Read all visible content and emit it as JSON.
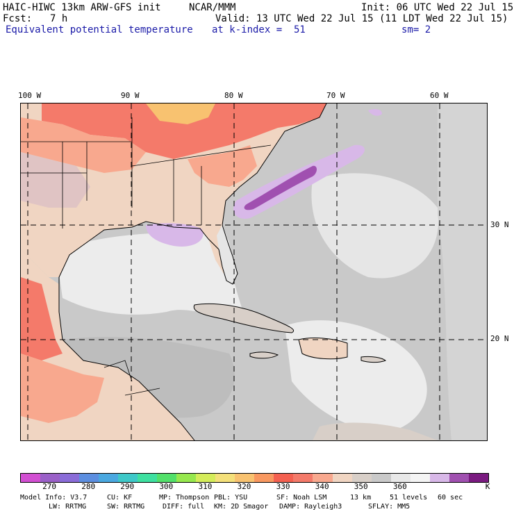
{
  "header": {
    "model_title": "HAIC-HIWC 13km ARW-GFS init",
    "center": "NCAR/MMM",
    "init_time": "Init: 06 UTC Wed 22 Jul 15",
    "fcst_label": "Fcst:",
    "fcst_value": "7 h",
    "valid_time": "Valid: 13 UTC Wed 22 Jul 15 (11 LDT Wed 22 Jul 15)",
    "field_name": "Equivalent potential temperature",
    "level_text": "at k-index =  51",
    "smoothing": "sm= 2"
  },
  "map": {
    "lon_labels": [
      "100 W",
      "90 W",
      "80 W",
      "70 W",
      "60 W"
    ],
    "lat_labels": [
      "30 N",
      "20 N"
    ],
    "ocean_color": "#c9c9c9",
    "land_color": "#f0d5c2",
    "coast_color": "#000000",
    "grid_color": "#000000"
  },
  "colorbar": {
    "colors": [
      "#d24fd2",
      "#9a60c8",
      "#8a6cd8",
      "#5c8ee0",
      "#4aa8e0",
      "#3ec8c8",
      "#3ee0a0",
      "#52e06a",
      "#96e84e",
      "#d4ec5a",
      "#f4e07a",
      "#f8c270",
      "#f89860",
      "#f46050",
      "#f47a6a",
      "#f8a88e",
      "#f0d5c2",
      "#d8cfc8",
      "#c9c9c9",
      "#e8e8e8",
      "#f4f4f4",
      "#d8b8e8",
      "#a050b0",
      "#7a1a80"
    ],
    "tick_labels": [
      "270",
      "280",
      "290",
      "300",
      "310",
      "320",
      "330",
      "340",
      "350",
      "360"
    ],
    "units": "K"
  },
  "footer": {
    "line1": [
      {
        "label": "Model Info: V3.7"
      },
      {
        "label": "CU: KF"
      },
      {
        "label": "MP: Thompson"
      },
      {
        "label": "PBL: YSU"
      },
      {
        "label": "SF: Noah LSM"
      },
      {
        "label": "13 km"
      },
      {
        "label": "51 levels"
      },
      {
        "label": "60 sec"
      }
    ],
    "line2": [
      {
        "label": "LW: RRTMG"
      },
      {
        "label": "SW: RRTMG"
      },
      {
        "label": "DIFF: full"
      },
      {
        "label": "KM: 2D Smagor"
      },
      {
        "label": "DAMP: Rayleigh3"
      },
      {
        "label": "SFLAY: MM5"
      }
    ]
  }
}
